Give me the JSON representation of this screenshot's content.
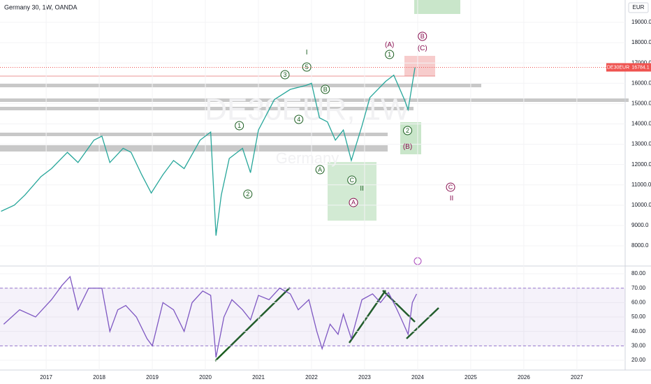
{
  "chart_data": [
    {
      "type": "line",
      "title": "Germany 30, 1W, OANDA",
      "watermark": "DE30EUR, 1W",
      "watermark_sub": "Germany",
      "currency": "EUR",
      "color": "#26a69a",
      "x": [
        2016.15,
        2016.4,
        2016.6,
        2016.9,
        2017.1,
        2017.4,
        2017.6,
        2017.9,
        2018.05,
        2018.2,
        2018.45,
        2018.6,
        2018.8,
        2018.98,
        2019.2,
        2019.4,
        2019.6,
        2019.9,
        2020.1,
        2020.2,
        2020.3,
        2020.45,
        2020.7,
        2020.85,
        2021.0,
        2021.3,
        2021.6,
        2021.9,
        2022.0,
        2022.15,
        2022.3,
        2022.45,
        2022.6,
        2022.75,
        2022.95,
        2023.1,
        2023.4,
        2023.55,
        2023.75,
        2023.82,
        2023.95
      ],
      "values": [
        9700,
        10000,
        10500,
        11400,
        11800,
        12600,
        12100,
        13200,
        13400,
        12100,
        12800,
        12600,
        11500,
        10600,
        11500,
        12200,
        11800,
        13200,
        13600,
        8500,
        10500,
        12300,
        12800,
        11600,
        13700,
        15200,
        15700,
        15900,
        16000,
        14300,
        14100,
        13200,
        13700,
        12200,
        13900,
        15300,
        16100,
        16400,
        15200,
        14700,
        16784.1
      ],
      "last_price": {
        "name": "DE30EUR",
        "value": 16784.1
      },
      "xlim": [
        2016.13,
        2027.91
      ],
      "xticks": [
        2017,
        2018,
        2019,
        2020,
        2021,
        2022,
        2023,
        2024,
        2025,
        2026,
        2027
      ],
      "ylim": [
        7040,
        20100
      ],
      "yticks": [
        {
          "value": 8000,
          "label": "8000.0"
        },
        {
          "value": 9000,
          "label": "9000.0"
        },
        {
          "value": 10000,
          "label": "10000.0"
        },
        {
          "value": 11000,
          "label": "11000.0"
        },
        {
          "value": 12000,
          "label": "12000.0"
        },
        {
          "value": 13000,
          "label": "13000.0"
        },
        {
          "value": 14000,
          "label": "14000.0"
        },
        {
          "value": 15000,
          "label": "15000.0"
        },
        {
          "value": 16000,
          "label": "16000.0"
        },
        {
          "value": 17000,
          "label": "17000.0"
        },
        {
          "value": 18000,
          "label": "18000.0"
        },
        {
          "value": 19000,
          "label": "19000.0"
        }
      ],
      "annotations": [
        {
          "text": "1",
          "x": 2020.64,
          "y": 13913,
          "color": "#1b5e20",
          "circle": true
        },
        {
          "text": "2",
          "x": 2020.8,
          "y": 10544,
          "color": "#1b5e20",
          "circle": true
        },
        {
          "text": "3",
          "x": 2021.5,
          "y": 16422,
          "color": "#1b5e20",
          "circle": true
        },
        {
          "text": "4",
          "x": 2021.76,
          "y": 14222,
          "color": "#1b5e20",
          "circle": true
        },
        {
          "text": "5",
          "x": 2021.91,
          "y": 16800,
          "color": "#1b5e20",
          "circle": true
        },
        {
          "text": "I",
          "x": 2021.91,
          "y": 17522,
          "color": "#1b5e20",
          "circle": false
        },
        {
          "text": "B",
          "x": 2022.26,
          "y": 15700,
          "color": "#1b5e20",
          "circle": true
        },
        {
          "text": "A",
          "x": 2022.16,
          "y": 11747,
          "color": "#1b5e20",
          "circle": true
        },
        {
          "text": "C",
          "x": 2022.76,
          "y": 11231,
          "color": "#1b5e20",
          "circle": true
        },
        {
          "text": "II",
          "x": 2022.95,
          "y": 10819,
          "color": "#1b5e20",
          "circle": false
        },
        {
          "text": "A",
          "x": 2022.79,
          "y": 10131,
          "color": "#880e4f",
          "circle": true
        },
        {
          "text": "(A)",
          "x": 2023.47,
          "y": 17900,
          "color": "#880e4f",
          "circle": false
        },
        {
          "text": "1",
          "x": 2023.47,
          "y": 17419,
          "color": "#1b5e20",
          "circle": true
        },
        {
          "text": "B",
          "x": 2024.09,
          "y": 18313,
          "color": "#880e4f",
          "circle": true
        },
        {
          "text": "(C)",
          "x": 2024.09,
          "y": 17729,
          "color": "#880e4f",
          "circle": false
        },
        {
          "text": "2",
          "x": 2023.81,
          "y": 13672,
          "color": "#1b5e20",
          "circle": true
        },
        {
          "text": "(B)",
          "x": 2023.81,
          "y": 12880,
          "color": "#880e4f",
          "circle": false
        },
        {
          "text": "C",
          "x": 2024.62,
          "y": 10887,
          "color": "#880e4f",
          "circle": true
        },
        {
          "text": "II",
          "x": 2024.64,
          "y": 10337,
          "color": "#880e4f",
          "circle": false
        }
      ]
    },
    {
      "type": "line",
      "color": "#7e57c2",
      "levels": [
        30,
        70
      ],
      "x": [
        2016.2,
        2016.5,
        2016.8,
        2017.1,
        2017.3,
        2017.45,
        2017.6,
        2017.8,
        2018.05,
        2018.2,
        2018.35,
        2018.5,
        2018.7,
        2018.9,
        2019.0,
        2019.2,
        2019.4,
        2019.6,
        2019.75,
        2019.95,
        2020.1,
        2020.2,
        2020.35,
        2020.5,
        2020.7,
        2020.85,
        2021.0,
        2021.2,
        2021.4,
        2021.6,
        2021.75,
        2021.95,
        2022.1,
        2022.2,
        2022.35,
        2022.5,
        2022.6,
        2022.75,
        2022.95,
        2023.15,
        2023.3,
        2023.45,
        2023.6,
        2023.7,
        2023.82,
        2023.9,
        2023.98
      ],
      "values": [
        45,
        55,
        50,
        62,
        72,
        78,
        55,
        70,
        70,
        40,
        55,
        58,
        50,
        35,
        30,
        60,
        55,
        40,
        60,
        68,
        65,
        22,
        50,
        62,
        55,
        48,
        65,
        62,
        70,
        66,
        55,
        62,
        40,
        28,
        45,
        38,
        52,
        35,
        62,
        66,
        60,
        67,
        56,
        48,
        38,
        60,
        66
      ],
      "ylim": [
        13.2,
        84.4
      ],
      "yticks": [
        {
          "value": 20,
          "label": "20.00"
        },
        {
          "value": 30,
          "label": "30.00"
        },
        {
          "value": 40,
          "label": "40.00"
        },
        {
          "value": 50,
          "label": "50.00"
        },
        {
          "value": 60,
          "label": "60.00"
        },
        {
          "value": 70,
          "label": "70.00"
        },
        {
          "value": 80,
          "label": "80.00"
        }
      ]
    }
  ]
}
